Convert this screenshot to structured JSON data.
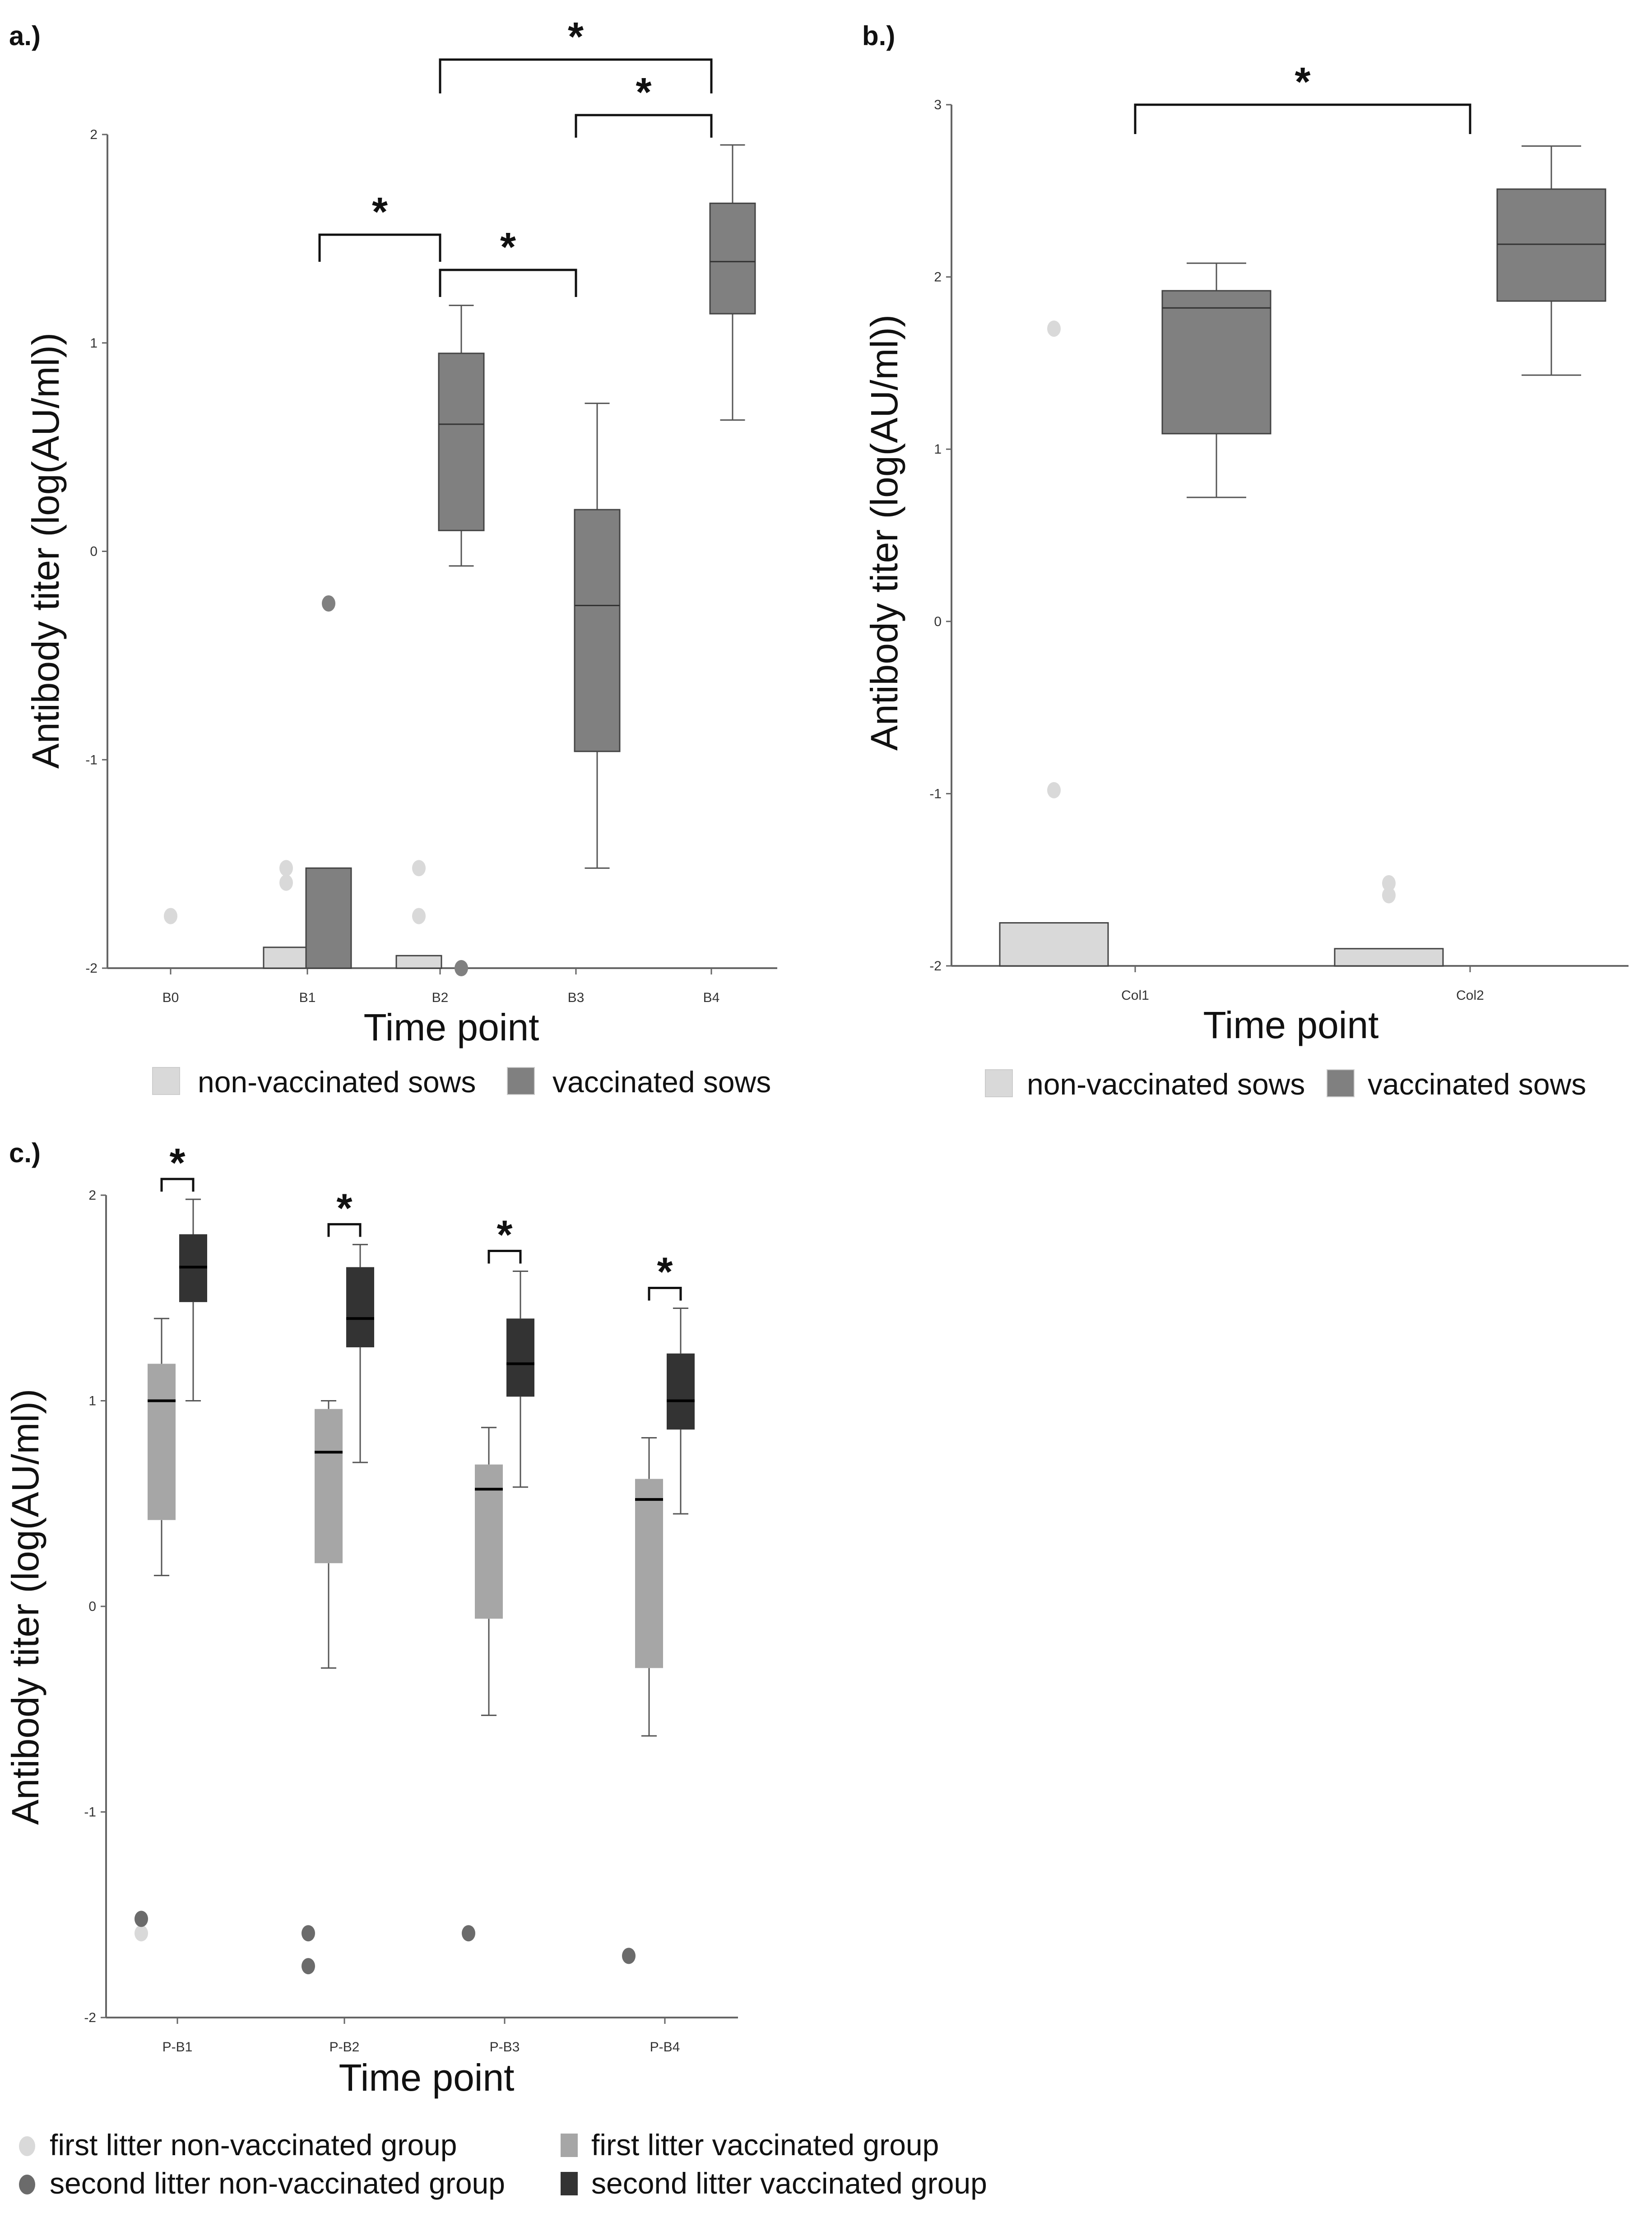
{
  "chart_data": [
    {
      "panel_label": "a.)",
      "type": "box",
      "xlabel": "Time point",
      "ylabel": "Antibody titer (log(AU/ml))",
      "ylim": [
        -2,
        2
      ],
      "yticks": [
        "2",
        "1",
        "0",
        "-1",
        "-2"
      ],
      "categories": [
        "B0",
        "B1",
        "B2",
        "B3",
        "B4"
      ],
      "legend": [
        {
          "label": "non-vaccinated sows",
          "color": "#d9d9d9"
        },
        {
          "label": "vaccinated sows",
          "color": "#808080"
        }
      ],
      "series": [
        {
          "name": "non-vaccinated sows",
          "color": "#d9d9d9",
          "boxes": [
            {
              "category": "B0",
              "outliers": [
                -1.75
              ]
            },
            {
              "category": "B1",
              "q1": -2,
              "median": -2,
              "q3": -1.9,
              "outliers": [
                -1.52,
                -1.59
              ]
            },
            {
              "category": "B2",
              "q1": -2,
              "median": -2,
              "q3": -1.94,
              "outliers": [
                -1.52,
                -1.75
              ]
            }
          ]
        },
        {
          "name": "vaccinated sows",
          "color": "#808080",
          "boxes": [
            {
              "category": "B1",
              "q1": -2,
              "median": -2,
              "q3": -1.52,
              "outliers": [
                -0.25
              ]
            },
            {
              "category": "B2",
              "whislo": -0.07,
              "q1": 0.1,
              "median": 0.61,
              "q3": 0.95,
              "whishi": 1.18,
              "outliers": [
                -2.0
              ]
            },
            {
              "category": "B3",
              "whislo": -1.52,
              "q1": -0.96,
              "median": -0.26,
              "q3": 0.2,
              "whishi": 0.71
            },
            {
              "category": "B4",
              "whislo": 0.63,
              "q1": 1.14,
              "median": 1.39,
              "q3": 1.67,
              "whishi": 1.95
            }
          ]
        }
      ],
      "significance": [
        {
          "from": "B1",
          "to": "B2",
          "label": "*"
        },
        {
          "from": "B2",
          "to": "B3",
          "label": "*"
        },
        {
          "from": "B3",
          "to": "B4",
          "label": "*"
        },
        {
          "from": "B2",
          "to": "B4",
          "label": "*"
        }
      ]
    },
    {
      "panel_label": "b.)",
      "type": "box",
      "xlabel": "Time point",
      "ylabel": "Antibody titer (log(AU/ml))",
      "ylim": [
        -2,
        3
      ],
      "yticks": [
        "3",
        "2",
        "1",
        "0",
        "-1",
        "-2"
      ],
      "categories": [
        "Col1",
        "Col2"
      ],
      "legend": [
        {
          "label": "non-vaccinated sows",
          "color": "#d9d9d9"
        },
        {
          "label": "vaccinated sows",
          "color": "#808080"
        }
      ],
      "series": [
        {
          "name": "non-vaccinated sows",
          "color": "#d9d9d9",
          "boxes": [
            {
              "category": "Col1",
              "q1": -2,
              "median": -2,
              "q3": -1.75,
              "outliers": [
                1.7,
                -0.98
              ]
            },
            {
              "category": "Col2",
              "q1": -2,
              "median": -2,
              "q3": -1.9,
              "outliers": [
                -1.52,
                -1.59
              ]
            }
          ]
        },
        {
          "name": "vaccinated sows",
          "color": "#808080",
          "boxes": [
            {
              "category": "Col1",
              "whislo": 0.72,
              "q1": 1.09,
              "median": 1.82,
              "q3": 1.92,
              "whishi": 2.08
            },
            {
              "category": "Col2",
              "whislo": 1.43,
              "q1": 1.86,
              "median": 2.19,
              "q3": 2.51,
              "whishi": 2.76
            }
          ]
        }
      ],
      "significance": [
        {
          "from": "Col1",
          "to": "Col2",
          "label": "*"
        }
      ]
    },
    {
      "panel_label": "c.)",
      "type": "box",
      "xlabel": "Time point",
      "ylabel": "Antibody titer (log(AU/ml))",
      "ylim": [
        -2,
        2
      ],
      "yticks": [
        "2",
        "1",
        "0",
        "-1",
        "-2"
      ],
      "categories": [
        "P-B1",
        "P-B2",
        "P-B3",
        "P-B4"
      ],
      "legend": [
        {
          "label": "first  litter non-vaccinated group",
          "color": "#d9d9d9",
          "marker": "dot"
        },
        {
          "label": "first litter vaccinated group",
          "color": "#a6a6a6",
          "marker": "square"
        },
        {
          "label": "second litter non-vaccinated group",
          "color": "#6b6b6b",
          "marker": "dot"
        },
        {
          "label": "second litter vaccinated group",
          "color": "#333333",
          "marker": "square"
        }
      ],
      "series": [
        {
          "name": "first  litter non-vaccinated group",
          "color": "#d9d9d9",
          "boxes": [
            {
              "category": "P-B1",
              "outliers": [
                -1.59
              ]
            }
          ]
        },
        {
          "name": "second litter non-vaccinated group",
          "color": "#6b6b6b",
          "boxes": [
            {
              "category": "P-B1",
              "outliers": [
                -1.52
              ]
            },
            {
              "category": "P-B2",
              "outliers": [
                -1.59,
                -1.75
              ]
            },
            {
              "category": "P-B3",
              "outliers": [
                -1.59
              ]
            },
            {
              "category": "P-B4",
              "outliers": [
                -1.7
              ]
            }
          ]
        },
        {
          "name": "first litter vaccinated group",
          "color": "#a6a6a6",
          "boxes": [
            {
              "category": "P-B1",
              "whislo": 0.15,
              "q1": 0.42,
              "median": 1.0,
              "q3": 1.18,
              "whishi": 1.4
            },
            {
              "category": "P-B2",
              "whislo": -0.3,
              "q1": 0.21,
              "median": 0.75,
              "q3": 0.96,
              "whishi": 1.0
            },
            {
              "category": "P-B3",
              "whislo": -0.53,
              "q1": -0.06,
              "median": 0.57,
              "q3": 0.69,
              "whishi": 0.87
            },
            {
              "category": "P-B4",
              "whislo": -0.63,
              "q1": -0.3,
              "median": 0.52,
              "q3": 0.62,
              "whishi": 0.82
            }
          ]
        },
        {
          "name": "second litter vaccinated group",
          "color": "#333333",
          "boxes": [
            {
              "category": "P-B1",
              "whislo": 1.0,
              "q1": 1.48,
              "median": 1.65,
              "q3": 1.81,
              "whishi": 1.98
            },
            {
              "category": "P-B2",
              "whislo": 0.7,
              "q1": 1.26,
              "median": 1.4,
              "q3": 1.65,
              "whishi": 1.76
            },
            {
              "category": "P-B3",
              "whislo": 0.58,
              "q1": 1.02,
              "median": 1.18,
              "q3": 1.4,
              "whishi": 1.63
            },
            {
              "category": "P-B4",
              "whislo": 0.45,
              "q1": 0.86,
              "median": 1.0,
              "q3": 1.23,
              "whishi": 1.45
            }
          ]
        }
      ],
      "significance": [
        {
          "category": "P-B1",
          "label": "*"
        },
        {
          "category": "P-B2",
          "label": "*"
        },
        {
          "category": "P-B3",
          "label": "*"
        },
        {
          "category": "P-B4",
          "label": "*"
        }
      ]
    }
  ]
}
